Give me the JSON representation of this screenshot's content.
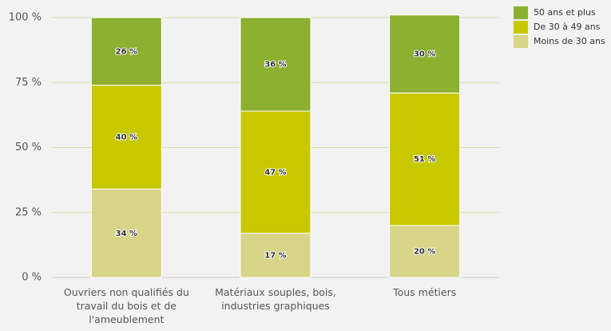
{
  "chart_data": {
    "type": "stacked_bar",
    "categories": [
      "Ouvriers non qualifiés du travail du bois et de l'ameublement",
      "Matériaux souples, bois, industries graphiques",
      "Tous métiers"
    ],
    "series": [
      {
        "name": "Moins de 30 ans",
        "color": "#d8d488",
        "values": [
          34,
          17,
          20
        ],
        "value_labels": [
          "34 %",
          "17 %",
          "20 %"
        ]
      },
      {
        "name": "De 30 à 49 ans",
        "color": "#c8c800",
        "values": [
          40,
          47,
          51
        ],
        "value_labels": [
          "40 %",
          "47 %",
          "51 %"
        ]
      },
      {
        "name": "50 ans et plus",
        "color": "#8db030",
        "values": [
          26,
          36,
          30
        ],
        "value_labels": [
          "26 %",
          "36 %",
          "30 %"
        ]
      }
    ],
    "ylim": [
      0,
      100
    ],
    "yticks": [
      {
        "value": 0,
        "label": "0 %"
      },
      {
        "value": 25,
        "label": "25 %"
      },
      {
        "value": 50,
        "label": "50 %"
      },
      {
        "value": 75,
        "label": "75 %"
      },
      {
        "value": 100,
        "label": "100 %"
      }
    ],
    "grid": true,
    "legend": "top-right"
  }
}
